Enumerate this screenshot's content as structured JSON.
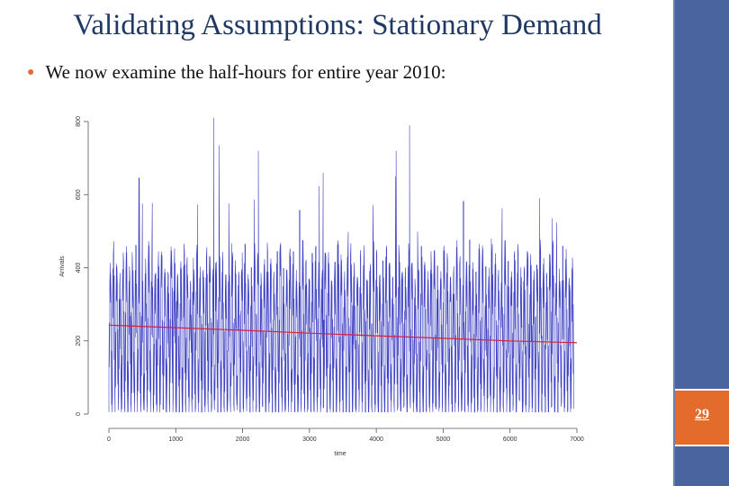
{
  "slide": {
    "title": "Validating Assumptions: Stationary Demand",
    "bullet": "We now examine the half-hours for entire year 2010:",
    "page_number": "29"
  },
  "colors": {
    "title": "#1f3864",
    "sidebar": "#4a64a0",
    "page_box": "#e36c2c",
    "bullet": "#e36c2c",
    "series_arrivals": "#1e22b8",
    "series_trend": "#d8203a"
  },
  "chart_data": {
    "type": "line",
    "title": "",
    "xlabel": "time",
    "ylabel": "Arrivals",
    "xlim": [
      0,
      7000
    ],
    "ylim": [
      0,
      800
    ],
    "xticks": [
      0,
      1000,
      2000,
      3000,
      4000,
      5000,
      6000,
      7000
    ],
    "yticks": [
      0,
      200,
      400,
      600,
      800
    ],
    "grid": false,
    "legend": "none",
    "n_points": 6960,
    "series": [
      {
        "summary": "half-hourly arrivals, strong daily cycle oscillating between about 10 and 600, occasional spikes",
        "min": 5,
        "max": 810,
        "peak_points": [
          {
            "x": 1570,
            "y": 810
          },
          {
            "x": 1650,
            "y": 735
          },
          {
            "x": 4500,
            "y": 790
          },
          {
            "x": 4300,
            "y": 720
          },
          {
            "x": 2240,
            "y": 720
          },
          {
            "x": 6450,
            "y": 590
          },
          {
            "x": 3210,
            "y": 660
          }
        ]
      },
      {
        "summary": "smoothed trend, declining slowly",
        "x": [
          0,
          1000,
          2000,
          3000,
          4000,
          5000,
          6000,
          7000
        ],
        "y": [
          243,
          236,
          229,
          221,
          214,
          207,
          200,
          195
        ]
      }
    ]
  }
}
